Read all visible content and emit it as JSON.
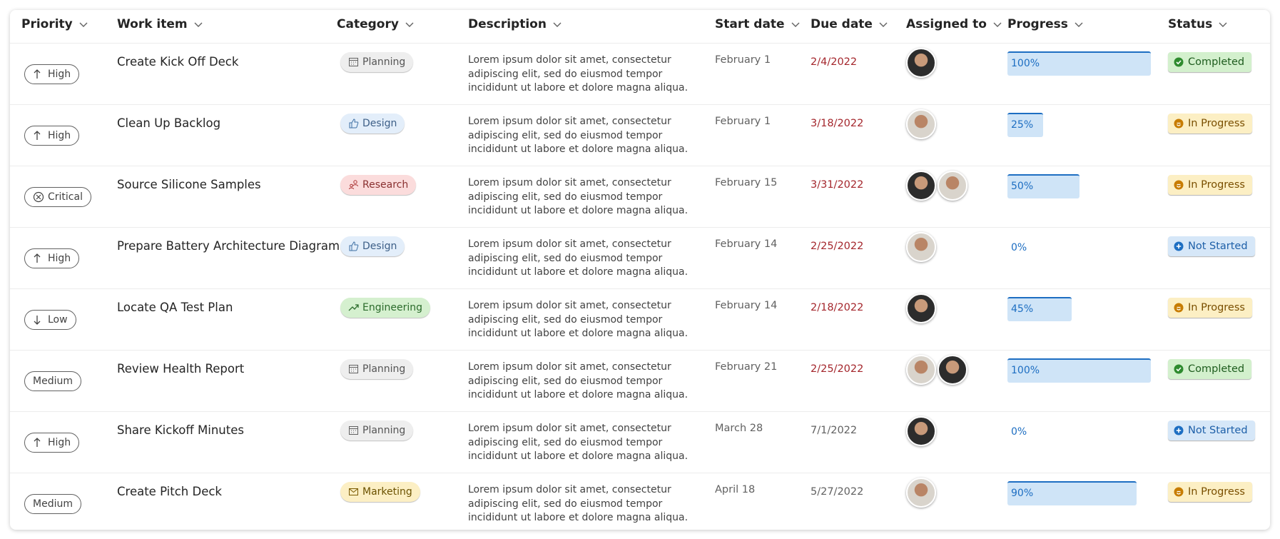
{
  "columns": [
    "Priority",
    "Work item",
    "Category",
    "Description",
    "Start date",
    "Due date",
    "Assigned to",
    "Progress",
    "Status"
  ],
  "rows": [
    {
      "priority": "High",
      "priority_icon": "up",
      "work_item": "Create Kick Off Deck",
      "category": "Planning",
      "category_icon": "calendar",
      "category_tone": "gray",
      "description": "Lorem ipsum dolor sit amet, consectetur adipiscing elit, sed do eiusmod tempor incididunt ut labore et dolore magna aliqua.",
      "start_date": "February 1",
      "due_date": "2/4/2022",
      "due_overdue": true,
      "assignees": 1,
      "progress": 100,
      "progress_label": "100%",
      "status": "Completed",
      "status_tone": "green"
    },
    {
      "priority": "High",
      "priority_icon": "up",
      "work_item": "Clean Up Backlog",
      "category": "Design",
      "category_icon": "thumb",
      "category_tone": "blue",
      "description": "Lorem ipsum dolor sit amet, consectetur adipiscing elit, sed do eiusmod tempor incididunt ut labore et dolore magna aliqua.",
      "start_date": "February 1",
      "due_date": "3/18/2022",
      "due_overdue": true,
      "assignees": 1,
      "progress": 25,
      "progress_label": "25%",
      "status": "In Progress",
      "status_tone": "yellow"
    },
    {
      "priority": "Critical",
      "priority_icon": "x",
      "work_item": "Source Silicone Samples",
      "category": "Research",
      "category_icon": "people",
      "category_tone": "red",
      "description": "Lorem ipsum dolor sit amet, consectetur adipiscing elit, sed do eiusmod tempor incididunt ut labore et dolore magna aliqua.",
      "start_date": "February 15",
      "due_date": "3/31/2022",
      "due_overdue": true,
      "assignees": 2,
      "progress": 50,
      "progress_label": "50%",
      "status": "In Progress",
      "status_tone": "yellow"
    },
    {
      "priority": "High",
      "priority_icon": "up",
      "work_item": "Prepare Battery Architecture Diagram",
      "category": "Design",
      "category_icon": "thumb",
      "category_tone": "blue",
      "description": "Lorem ipsum dolor sit amet, consectetur adipiscing elit, sed do eiusmod tempor incididunt ut labore et dolore magna aliqua.",
      "start_date": "February 14",
      "due_date": "2/25/2022",
      "due_overdue": true,
      "assignees": 1,
      "progress": 0,
      "progress_label": "0%",
      "status": "Not Started",
      "status_tone": "blue"
    },
    {
      "priority": "Low",
      "priority_icon": "down",
      "work_item": "Locate QA Test Plan",
      "category": "Engineering",
      "category_icon": "trend",
      "category_tone": "green",
      "description": "Lorem ipsum dolor sit amet, consectetur adipiscing elit, sed do eiusmod tempor incididunt ut labore et dolore magna aliqua.",
      "start_date": "February 14",
      "due_date": "2/18/2022",
      "due_overdue": true,
      "assignees": 1,
      "progress": 45,
      "progress_label": "45%",
      "status": "In Progress",
      "status_tone": "yellow"
    },
    {
      "priority": "Medium",
      "priority_icon": "none",
      "work_item": "Review Health Report",
      "category": "Planning",
      "category_icon": "calendar",
      "category_tone": "gray",
      "description": "Lorem ipsum dolor sit amet, consectetur adipiscing elit, sed do eiusmod tempor incididunt ut labore et dolore magna aliqua.",
      "start_date": "February 21",
      "due_date": "2/25/2022",
      "due_overdue": true,
      "assignees": 2,
      "progress": 100,
      "progress_label": "100%",
      "status": "Completed",
      "status_tone": "green"
    },
    {
      "priority": "High",
      "priority_icon": "up",
      "work_item": "Share Kickoff Minutes",
      "category": "Planning",
      "category_icon": "calendar",
      "category_tone": "gray",
      "description": "Lorem ipsum dolor sit amet, consectetur adipiscing elit, sed do eiusmod tempor incididunt ut labore et dolore magna aliqua.",
      "start_date": "March 28",
      "due_date": "7/1/2022",
      "due_overdue": false,
      "assignees": 1,
      "progress": 0,
      "progress_label": "0%",
      "status": "Not Started",
      "status_tone": "blue"
    },
    {
      "priority": "Medium",
      "priority_icon": "none",
      "work_item": "Create Pitch Deck",
      "category": "Marketing",
      "category_icon": "mail",
      "category_tone": "yellow",
      "description": "Lorem ipsum dolor sit amet, consectetur adipiscing elit, sed do eiusmod tempor incididunt ut labore et dolore magna aliqua.",
      "start_date": "April 18",
      "due_date": "5/27/2022",
      "due_overdue": false,
      "assignees": 1,
      "progress": 90,
      "progress_label": "90%",
      "status": "In Progress",
      "status_tone": "yellow"
    }
  ]
}
